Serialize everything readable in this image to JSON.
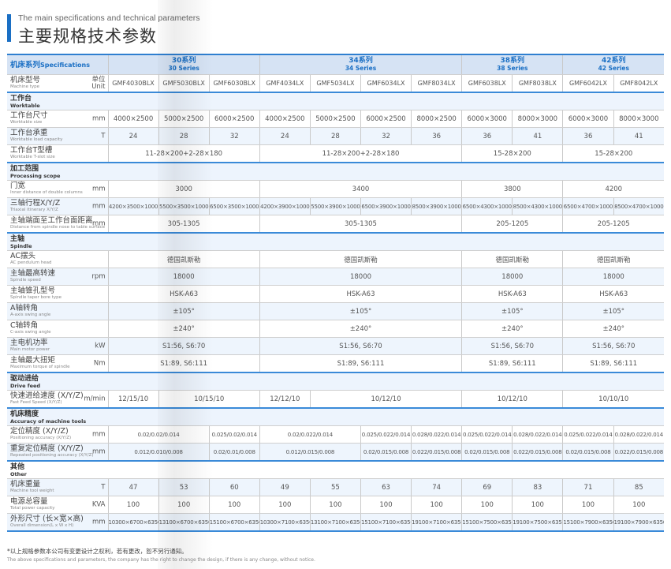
{
  "header": {
    "title_en": "The main specifications and technical parameters",
    "title_cn": "主要规格技术参数",
    "accent": "#1a6fc4"
  },
  "table": {
    "spec_label_cn": "机床系列",
    "spec_label_en": "Specifications",
    "series": [
      {
        "cn": "30系列",
        "en": "30 Series",
        "span": 3
      },
      {
        "cn": "34系列",
        "en": "34 Series",
        "span": 4
      },
      {
        "cn": "38系列",
        "en": "38 Series",
        "span": 2
      },
      {
        "cn": "42系列",
        "en": "42 Series",
        "span": 2
      }
    ],
    "model_row": {
      "cn": "机床型号",
      "en": "Machine type",
      "unit_cn": "单位",
      "unit_en": "Unit"
    },
    "models": [
      "GMF4030BLX",
      "GMF5030BLX",
      "GMF6030BLX",
      "GMF4034LX",
      "GMF5034LX",
      "GMF6034LX",
      "GMF8034LX",
      "GMF6038LX",
      "GMF8038LX",
      "GMF6042LX",
      "GMF8042LX"
    ],
    "rows": [
      {
        "type": "section",
        "cn": "工作台",
        "en": "Worktable"
      },
      {
        "cn": "工作台尺寸",
        "en": "Worktable size",
        "unit": "mm",
        "cells": [
          [
            "4000×2500",
            1
          ],
          [
            "5000×2500",
            1
          ],
          [
            "6000×2500",
            1
          ],
          [
            "4000×2500",
            1
          ],
          [
            "5000×2500",
            1
          ],
          [
            "6000×2500",
            1
          ],
          [
            "8000×2500",
            1
          ],
          [
            "6000×3000",
            1
          ],
          [
            "8000×3000",
            1
          ],
          [
            "6000×3000",
            1
          ],
          [
            "8000×3000",
            1
          ]
        ]
      },
      {
        "cn": "工作台承重",
        "en": "Worktable load capacity",
        "unit": "T",
        "alt": true,
        "cells": [
          [
            "24",
            1
          ],
          [
            "28",
            1
          ],
          [
            "32",
            1
          ],
          [
            "24",
            1
          ],
          [
            "28",
            1
          ],
          [
            "32",
            1
          ],
          [
            "36",
            1
          ],
          [
            "36",
            1
          ],
          [
            "41",
            1
          ],
          [
            "36",
            1
          ],
          [
            "41",
            1
          ]
        ]
      },
      {
        "cn": "工作台T型槽",
        "en": "Worktable T-slot size",
        "unit": "",
        "cells": [
          [
            "11-28×200+2-28×180",
            3
          ],
          [
            "11-28×200+2-28×180",
            4
          ],
          [
            "15-28×200",
            2
          ],
          [
            "15-28×200",
            2
          ]
        ]
      },
      {
        "type": "section",
        "cn": "加工范围",
        "en": "Processing scope"
      },
      {
        "cn": "门宽",
        "en": "Inner distance of double columns",
        "unit": "mm",
        "cells": [
          [
            "3000",
            3
          ],
          [
            "3400",
            4
          ],
          [
            "3800",
            2
          ],
          [
            "4200",
            2
          ]
        ]
      },
      {
        "cn": "三轴行程X/Y/Z",
        "en": "Triaxial itinerary X/Y/Z",
        "unit": "mm",
        "alt": true,
        "small": true,
        "cells": [
          [
            "4200×3500×1000",
            1
          ],
          [
            "5500×3500×1000",
            1
          ],
          [
            "6500×3500×1000",
            1
          ],
          [
            "4200×3900×1000",
            1
          ],
          [
            "5500×3900×1000",
            1
          ],
          [
            "6500×3900×1000",
            1
          ],
          [
            "8500×3900×1000",
            1
          ],
          [
            "6500×4300×1000",
            1
          ],
          [
            "8500×4300×1000",
            1
          ],
          [
            "6500×4700×1000",
            1
          ],
          [
            "8500×4700×1000",
            1
          ]
        ]
      },
      {
        "cn": "主轴端面至工作台面距离",
        "en": "Distance from spindle nose to table surface",
        "unit": "mm",
        "cells": [
          [
            "305-1305",
            3
          ],
          [
            "305-1305",
            4
          ],
          [
            "205-1205",
            2
          ],
          [
            "205-1205",
            2
          ]
        ]
      },
      {
        "type": "section",
        "cn": "主轴",
        "en": "Spindle"
      },
      {
        "cn": "AC摆头",
        "en": "AC pendulum head",
        "unit": "",
        "cells": [
          [
            "德国凯斯勒",
            3
          ],
          [
            "德国凯斯勒",
            4
          ],
          [
            "德国凯斯勒",
            2
          ],
          [
            "德国凯斯勒",
            2
          ]
        ]
      },
      {
        "cn": "主轴最高转速",
        "en": "Spindle speed",
        "unit": "rpm",
        "alt": true,
        "cells": [
          [
            "18000",
            3
          ],
          [
            "18000",
            4
          ],
          [
            "18000",
            2
          ],
          [
            "18000",
            2
          ]
        ]
      },
      {
        "cn": "主轴锥孔型号",
        "en": "Spindle taper bore type",
        "unit": "",
        "cells": [
          [
            "HSK-A63",
            3
          ],
          [
            "HSK-A63",
            4
          ],
          [
            "HSK-A63",
            2
          ],
          [
            "HSK-A63",
            2
          ]
        ]
      },
      {
        "cn": "A轴转角",
        "en": "A-axis swing angle",
        "unit": "",
        "alt": true,
        "cells": [
          [
            "±105°",
            3
          ],
          [
            "±105°",
            4
          ],
          [
            "±105°",
            2
          ],
          [
            "±105°",
            2
          ]
        ]
      },
      {
        "cn": "C轴转角",
        "en": "C-axis swing angle",
        "unit": "",
        "cells": [
          [
            "±240°",
            3
          ],
          [
            "±240°",
            4
          ],
          [
            "±240°",
            2
          ],
          [
            "±240°",
            2
          ]
        ]
      },
      {
        "cn": "主电机功率",
        "en": "Main motor power",
        "unit": "kW",
        "alt": true,
        "cells": [
          [
            "S1:56, S6:70",
            3
          ],
          [
            "S1:56, S6:70",
            4
          ],
          [
            "S1:56, S6:70",
            2
          ],
          [
            "S1:56, S6:70",
            2
          ]
        ]
      },
      {
        "cn": "主轴最大扭矩",
        "en": "Maximum torque of spindle",
        "unit": "Nm",
        "cells": [
          [
            "S1:89, S6:111",
            3
          ],
          [
            "S1:89, S6:111",
            4
          ],
          [
            "S1:89, S6:111",
            2
          ],
          [
            "S1:89, S6:111",
            2
          ]
        ]
      },
      {
        "type": "section",
        "cn": "驱动进给",
        "en": "Drive feed"
      },
      {
        "cn": "快速进给速度 (X/Y/Z)",
        "en": "Fast Feed Speed (X/Y/Z)",
        "unit": "m/min",
        "cells": [
          [
            "12/15/10",
            1
          ],
          [
            "10/15/10",
            2
          ],
          [
            "12/12/10",
            1
          ],
          [
            "10/12/10",
            3
          ],
          [
            "10/12/10",
            2
          ],
          [
            "10/10/10",
            2
          ]
        ]
      },
      {
        "type": "section",
        "cn": "机床精度",
        "en": "Accuracy of machine tools"
      },
      {
        "cn": "定位精度 (X/Y/Z)",
        "en": "Positioning accuracy (X/Y/Z)",
        "unit": "mm",
        "small": true,
        "cells": [
          [
            "0.02/0.02/0.014",
            2
          ],
          [
            "0.025/0.02/0.014",
            1
          ],
          [
            "0.02/0.022/0.014",
            2
          ],
          [
            "0.025/0.022/0.014",
            1
          ],
          [
            "0.028/0.022/0.014",
            1
          ],
          [
            "0.025/0.022/0.014",
            1
          ],
          [
            "0.028/0.022/0.014",
            1
          ],
          [
            "0.025/0.022/0.014",
            1
          ],
          [
            "0.028/0.022/0.014",
            1
          ]
        ]
      },
      {
        "cn": "重复定位精度 (X/Y/Z)",
        "en": "Repeated positioning accuracy (X/Y/Z)",
        "unit": "mm",
        "alt": true,
        "small": true,
        "end": true,
        "cells": [
          [
            "0.012/0.010/0.008",
            2
          ],
          [
            "0.02/0.01/0.008",
            1
          ],
          [
            "0.012/0.015/0.008",
            2
          ],
          [
            "0.02/0.015/0.008",
            1
          ],
          [
            "0.022/0.015/0.008",
            1
          ],
          [
            "0.02/0.015/0.008",
            1
          ],
          [
            "0.022/0.015/0.008",
            1
          ],
          [
            "0.02/0.015/0.008",
            1
          ],
          [
            "0.022/0.015/0.008",
            1
          ]
        ]
      },
      {
        "type": "section",
        "plain": true,
        "cn": "其他",
        "en": "Other"
      },
      {
        "cn": "机床重量",
        "en": "Machine tool weight",
        "unit": "T",
        "alt": true,
        "cells": [
          [
            "47",
            1
          ],
          [
            "53",
            1
          ],
          [
            "60",
            1
          ],
          [
            "49",
            1
          ],
          [
            "55",
            1
          ],
          [
            "63",
            1
          ],
          [
            "74",
            1
          ],
          [
            "69",
            1
          ],
          [
            "83",
            1
          ],
          [
            "71",
            1
          ],
          [
            "85",
            1
          ]
        ]
      },
      {
        "cn": "电源总容量",
        "en": "Total power capacity",
        "unit": "KVA",
        "cells": [
          [
            "100",
            1
          ],
          [
            "100",
            1
          ],
          [
            "100",
            1
          ],
          [
            "100",
            1
          ],
          [
            "100",
            1
          ],
          [
            "100",
            1
          ],
          [
            "100",
            1
          ],
          [
            "100",
            1
          ],
          [
            "100",
            1
          ],
          [
            "100",
            1
          ],
          [
            "100",
            1
          ]
        ]
      },
      {
        "cn": "外形尺寸 (长×宽×高)",
        "en": "Overall dimension(L x W x H)",
        "unit": "mm",
        "alt": true,
        "small": true,
        "end": true,
        "cells": [
          [
            "10300×6700×6350",
            1
          ],
          [
            "13100×6700×6350",
            1
          ],
          [
            "15100×6700×6350",
            1
          ],
          [
            "10300×7100×6350",
            1
          ],
          [
            "13100×7100×6350",
            1
          ],
          [
            "15100×7100×6350",
            1
          ],
          [
            "19100×7100×6350",
            1
          ],
          [
            "15100×7500×6350",
            1
          ],
          [
            "19100×7500×6350",
            1
          ],
          [
            "15100×7900×6350",
            1
          ],
          [
            "19100×7900×6350",
            1
          ]
        ]
      }
    ]
  },
  "footnote": {
    "cn": "*以上规格参数本公司有变更设计之权利，若有更改，恕不另行通知。",
    "en": "The above specifications and parameters, the company has the right to change the design, if there is any change, without notice."
  }
}
